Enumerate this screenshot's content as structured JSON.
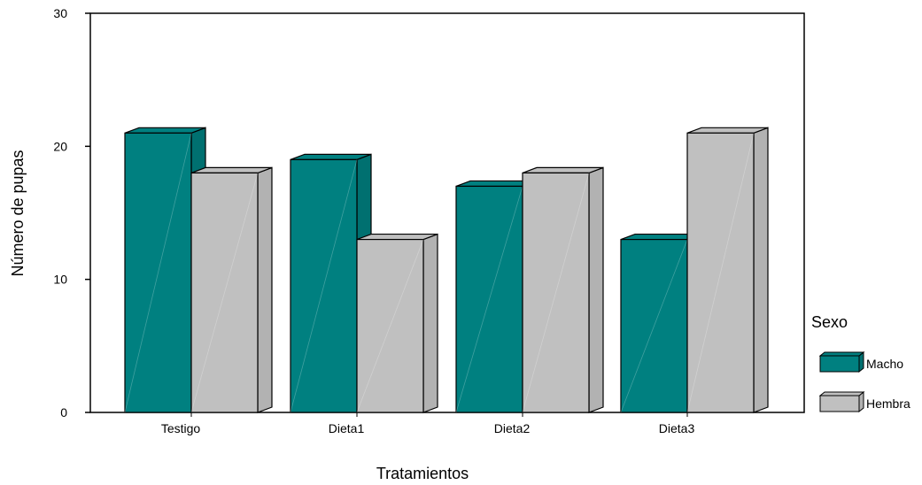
{
  "chart_data": {
    "type": "bar",
    "style": "3d-clustered",
    "categories": [
      "Testigo",
      "Dieta1",
      "Dieta2",
      "Dieta3"
    ],
    "series": [
      {
        "name": "Macho",
        "values": [
          21,
          19,
          17,
          13
        ],
        "color": "#008080"
      },
      {
        "name": "Hembra",
        "values": [
          18,
          13,
          18,
          21
        ],
        "color": "#c0c0c0"
      }
    ],
    "xlabel": "Tratamientos",
    "ylabel": "Número de pupas",
    "ylim": [
      0,
      30
    ],
    "yticks": [
      0,
      10,
      20,
      30
    ],
    "legend_title": "Sexo",
    "legend_position": "right",
    "grid": false
  }
}
